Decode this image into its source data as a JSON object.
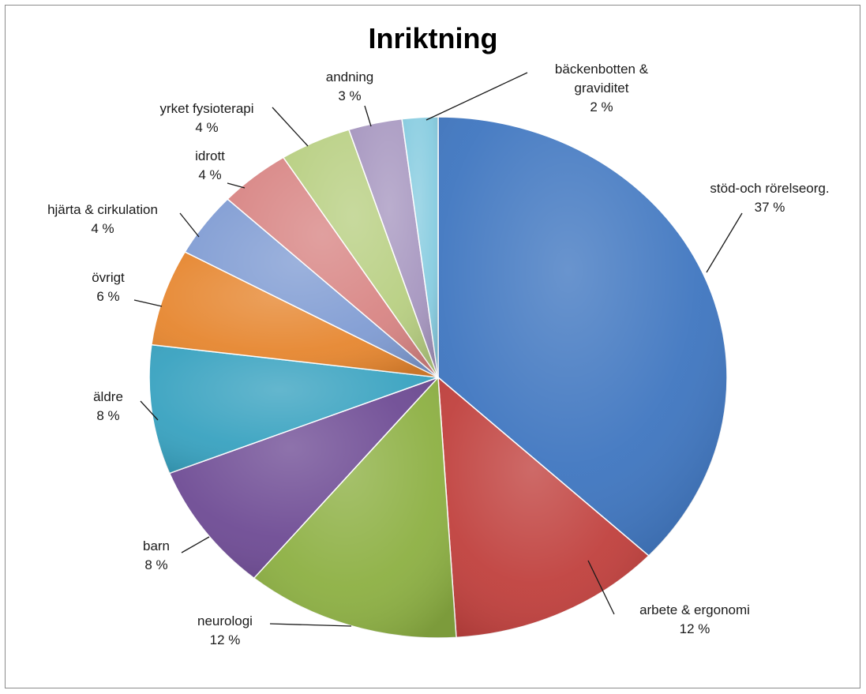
{
  "chart_data": {
    "type": "pie",
    "title": "Inriktning",
    "slices": [
      {
        "label": "stöd-och rörelseorg.",
        "value": 37,
        "value_text": "37 %",
        "color": "#3f76c0"
      },
      {
        "label": "arbete & ergonomi",
        "value": 12,
        "value_text": "12 %",
        "color": "#c0403d"
      },
      {
        "label": "neurologi",
        "value": 12,
        "value_text": "12 %",
        "color": "#8db043"
      },
      {
        "label": "barn",
        "value": 8,
        "value_text": "8 %",
        "color": "#6e4b94"
      },
      {
        "label": "äldre",
        "value": 8,
        "value_text": "8 %",
        "color": "#38a2c0"
      },
      {
        "label": "övrigt",
        "value": 6,
        "value_text": "6 %",
        "color": "#e6862f"
      },
      {
        "label": "hjärta & cirkulation",
        "value": 4,
        "value_text": "4 %",
        "color": "#809cd3"
      },
      {
        "label": "idrott",
        "value": 4,
        "value_text": "4 %",
        "color": "#d88584"
      },
      {
        "label": "yrket fysioterapi",
        "value": 4,
        "value_text": "4 %",
        "color": "#b8cf82"
      },
      {
        "label": "andning",
        "value": 3,
        "value_text": "3 %",
        "color": "#a797c0"
      },
      {
        "label": "bäckenbotten & graviditet",
        "value": 2,
        "value_text": "2 %",
        "color": "#87cce0"
      }
    ]
  }
}
